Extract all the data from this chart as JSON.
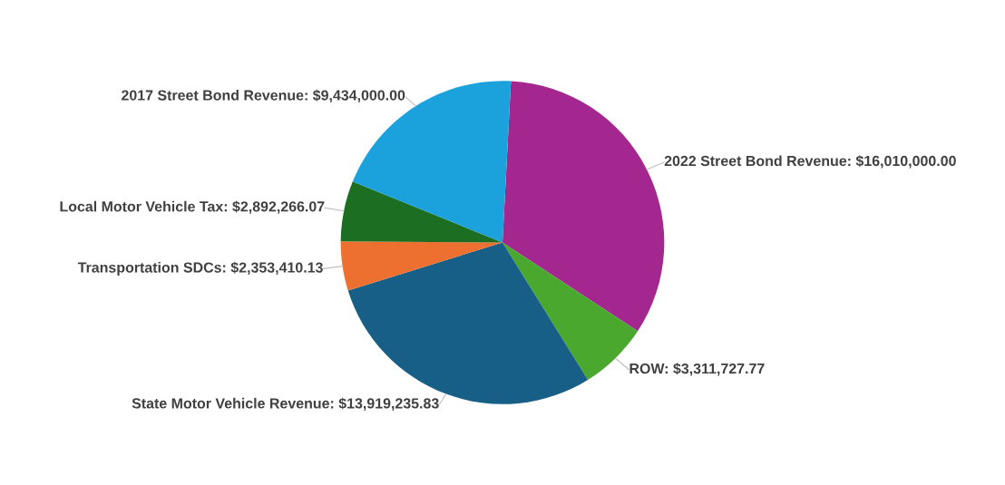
{
  "chart_data": {
    "type": "pie",
    "categories": [
      "2022 Street Bond Revenue",
      "ROW",
      "State Motor Vehicle Revenue",
      "Transportation SDCs",
      "Local Motor Vehicle Tax",
      "2017 Street Bond Revenue"
    ],
    "values": [
      16010000.0,
      3311727.77,
      13919235.83,
      2353410.13,
      2892266.07,
      9434000.0
    ],
    "value_labels": [
      "$16,010,000.00",
      "$3,311,727.77",
      "$13,919,235.83",
      "$2,353,410.13",
      "$2,892,266.07",
      "$9,434,000.00"
    ],
    "colors": [
      "#a3278f",
      "#4aa82e",
      "#175f86",
      "#ee7030",
      "#1b6e22",
      "#1ba2dc"
    ],
    "legend": false
  }
}
